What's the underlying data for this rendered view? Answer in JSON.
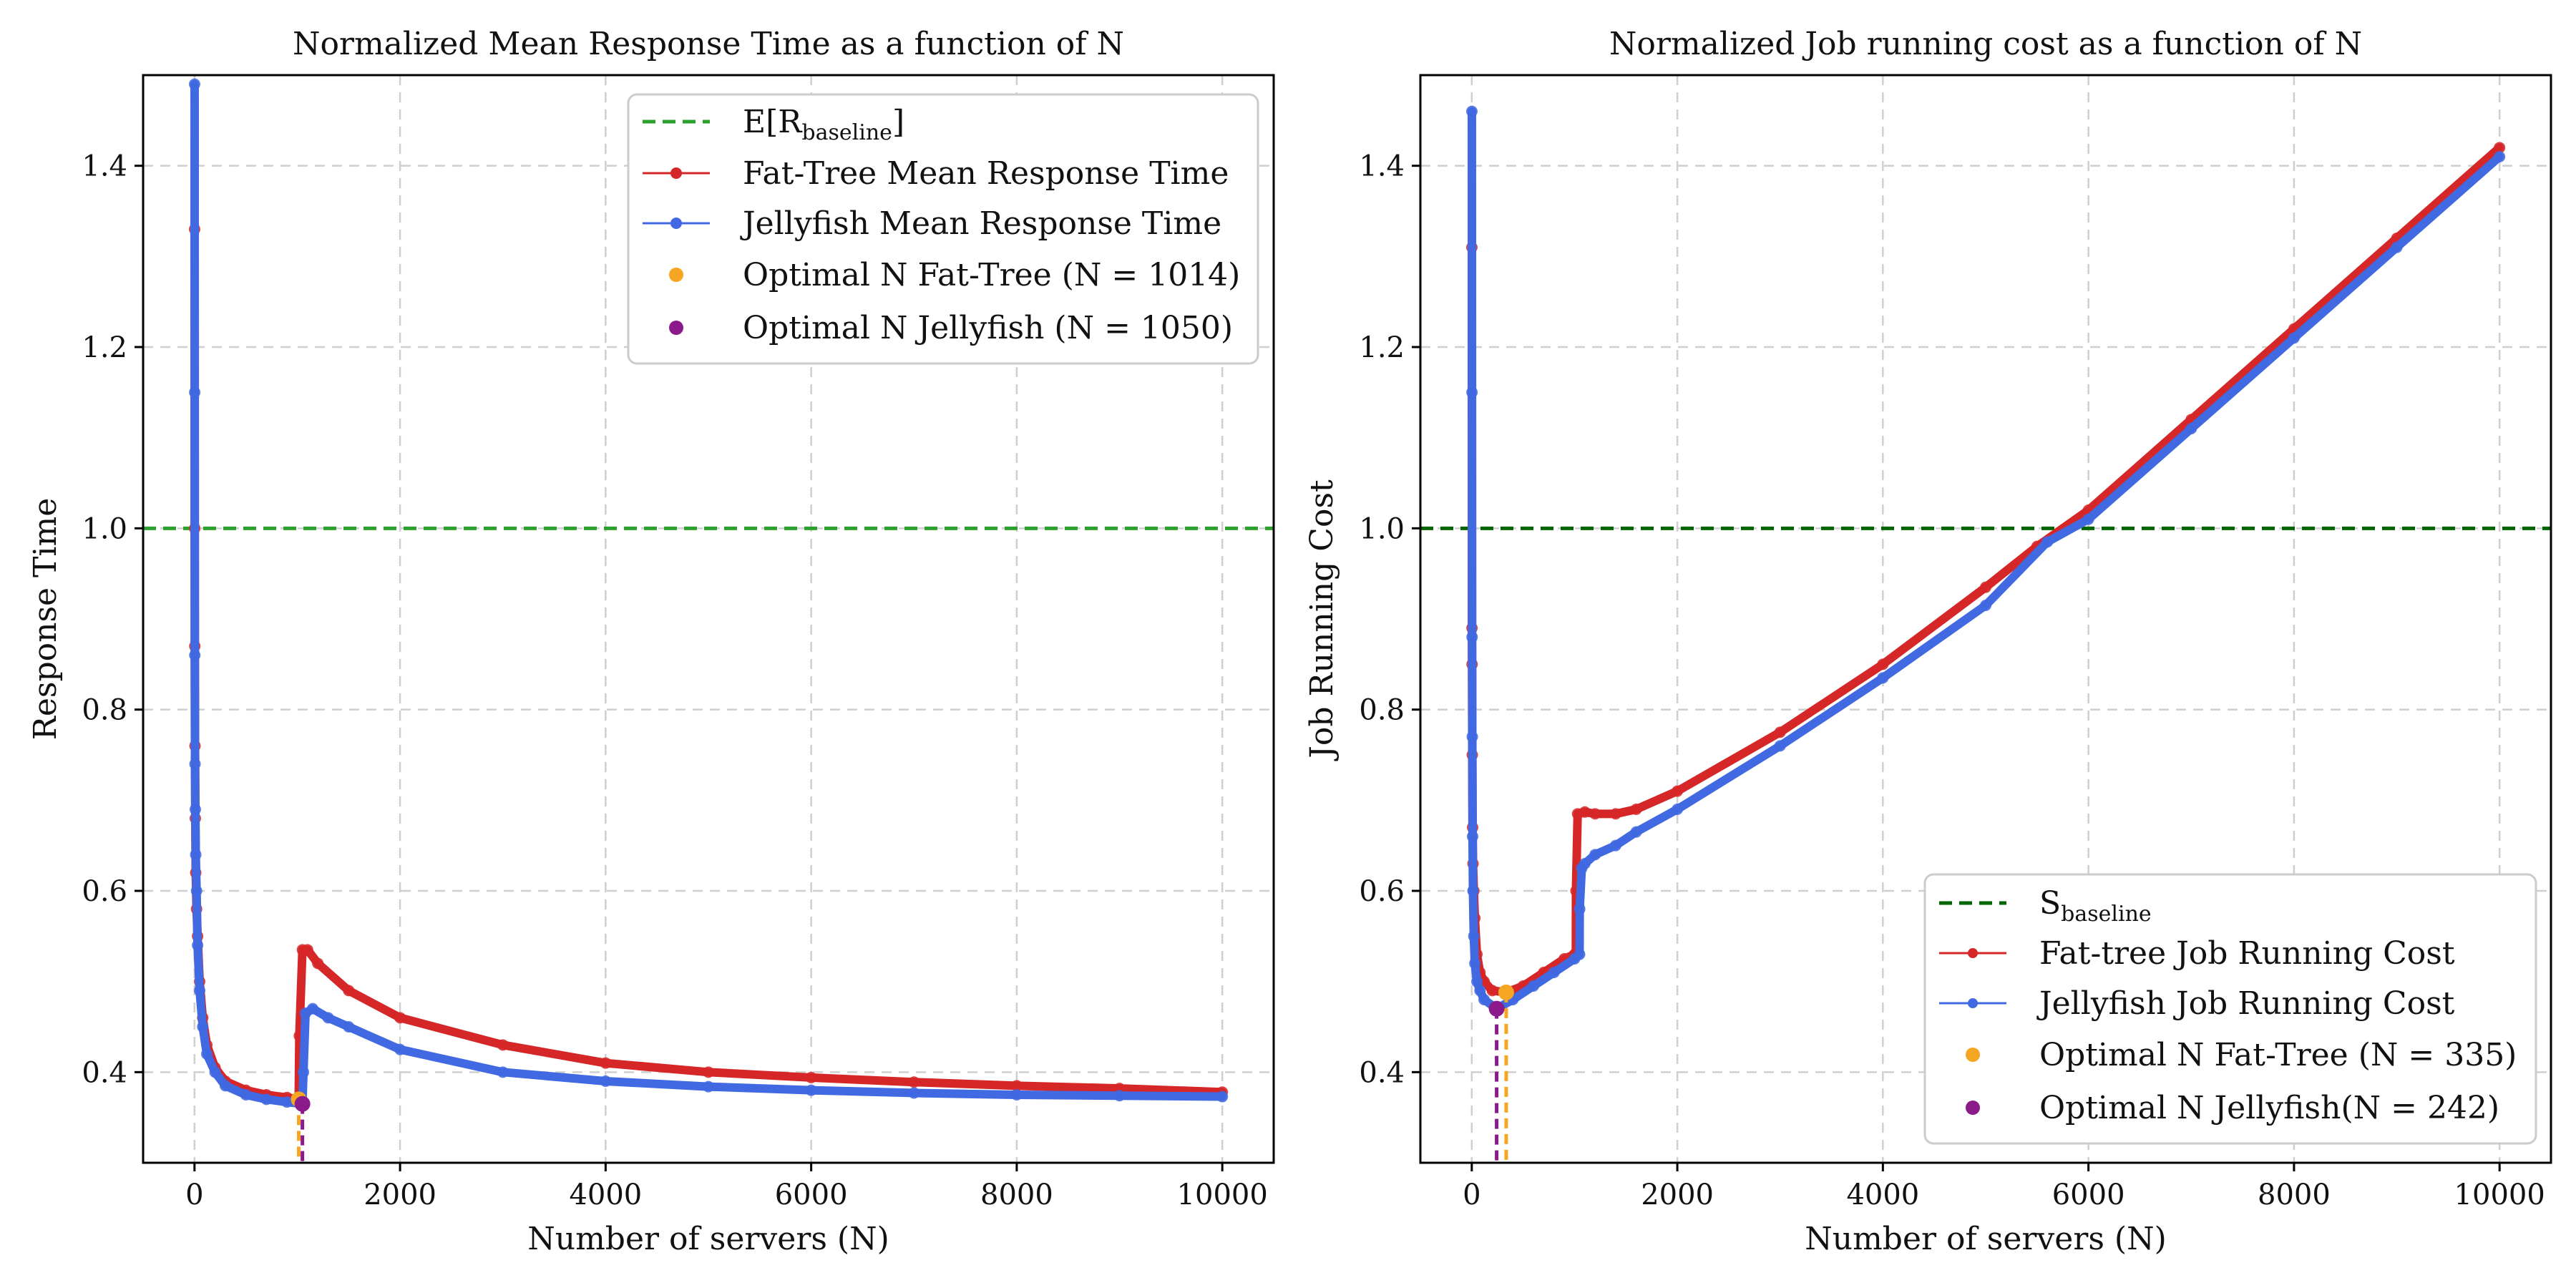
{
  "chart_data": [
    {
      "type": "line",
      "title": "Normalized Mean Response Time as a function of N",
      "xlabel": "Number of servers (N)",
      "ylabel": "Response Time",
      "xlim": [
        -500,
        10500
      ],
      "ylim": [
        0.3,
        1.5
      ],
      "xticks": [
        0,
        2000,
        4000,
        6000,
        8000,
        10000
      ],
      "xtick_labels": [
        "0",
        "2000",
        "4000",
        "6000",
        "8000",
        "10000"
      ],
      "yticks": [
        0.4,
        0.6,
        0.8,
        1.0,
        1.2,
        1.4
      ],
      "ytick_labels": [
        "0.4",
        "0.6",
        "0.8",
        "1.0",
        "1.2",
        "1.4"
      ],
      "grid": true,
      "legend_position": "upper-right",
      "baseline": {
        "label": "E[R_baseline]",
        "y": 1.0,
        "color": "#2ca02c"
      },
      "series": [
        {
          "name": "Fat-Tree Mean Response Time",
          "color": "#d62728",
          "x": [
            1,
            2,
            3,
            5,
            8,
            12,
            20,
            30,
            50,
            80,
            120,
            200,
            300,
            500,
            700,
            900,
            1013,
            1014,
            1020,
            1050,
            1100,
            1200,
            1500,
            2000,
            3000,
            4000,
            5000,
            6000,
            7000,
            8000,
            9000,
            10000
          ],
          "y": [
            1.33,
            1.0,
            0.87,
            0.76,
            0.68,
            0.62,
            0.58,
            0.55,
            0.5,
            0.46,
            0.43,
            0.405,
            0.39,
            0.38,
            0.375,
            0.372,
            0.37,
            0.37,
            0.44,
            0.535,
            0.535,
            0.52,
            0.49,
            0.46,
            0.43,
            0.41,
            0.4,
            0.394,
            0.389,
            0.385,
            0.382,
            0.378
          ]
        },
        {
          "name": "Jellyfish Mean Response Time",
          "color": "#4169e1",
          "x": [
            1,
            2,
            3,
            5,
            8,
            12,
            20,
            30,
            50,
            80,
            120,
            200,
            300,
            500,
            700,
            900,
            1049,
            1050,
            1060,
            1080,
            1150,
            1300,
            1500,
            2000,
            3000,
            4000,
            5000,
            6000,
            7000,
            8000,
            9000,
            10000
          ],
          "y": [
            1.49,
            1.15,
            0.86,
            0.74,
            0.69,
            0.64,
            0.6,
            0.54,
            0.49,
            0.45,
            0.42,
            0.4,
            0.385,
            0.375,
            0.37,
            0.367,
            0.365,
            0.365,
            0.4,
            0.465,
            0.47,
            0.46,
            0.45,
            0.425,
            0.4,
            0.39,
            0.384,
            0.38,
            0.377,
            0.375,
            0.374,
            0.373
          ]
        }
      ],
      "optimal_points": [
        {
          "label": "Optimal N Fat-Tree (N = 1014)",
          "x": 1014,
          "y": 0.37,
          "color": "#f5a623"
        },
        {
          "label": "Optimal N Jellyfish (N = 1050)",
          "x": 1050,
          "y": 0.365,
          "color": "#8b1a8b"
        }
      ]
    },
    {
      "type": "line",
      "title": "Normalized Job running cost as a function of N",
      "xlabel": "Number of servers (N)",
      "ylabel": "Job Running Cost",
      "xlim": [
        -500,
        10500
      ],
      "ylim": [
        0.3,
        1.5
      ],
      "xticks": [
        0,
        2000,
        4000,
        6000,
        8000,
        10000
      ],
      "xtick_labels": [
        "0",
        "2000",
        "4000",
        "6000",
        "8000",
        "10000"
      ],
      "yticks": [
        0.4,
        0.6,
        0.8,
        1.0,
        1.2,
        1.4
      ],
      "ytick_labels": [
        "0.4",
        "0.6",
        "0.8",
        "1.0",
        "1.2",
        "1.4"
      ],
      "grid": true,
      "legend_position": "lower-right",
      "baseline": {
        "label": "S_baseline",
        "y": 1.0,
        "color": "#006400"
      },
      "series": [
        {
          "name": "Fat-tree Job Running Cost",
          "color": "#d62728",
          "x": [
            1,
            2,
            3,
            5,
            8,
            12,
            20,
            30,
            50,
            80,
            120,
            200,
            335,
            500,
            700,
            900,
            1000,
            1013,
            1014,
            1030,
            1100,
            1200,
            1400,
            1600,
            2000,
            3000,
            4000,
            5000,
            5500,
            6000,
            7000,
            8000,
            9000,
            10000
          ],
          "y": [
            1.31,
            0.89,
            0.85,
            0.75,
            0.67,
            0.63,
            0.6,
            0.57,
            0.53,
            0.51,
            0.5,
            0.49,
            0.488,
            0.495,
            0.51,
            0.525,
            0.53,
            0.53,
            0.6,
            0.685,
            0.687,
            0.685,
            0.685,
            0.69,
            0.71,
            0.775,
            0.85,
            0.935,
            0.98,
            1.02,
            1.12,
            1.22,
            1.32,
            1.42
          ]
        },
        {
          "name": "Jellyfish Job Running Cost",
          "color": "#4169e1",
          "x": [
            1,
            2,
            3,
            5,
            8,
            12,
            20,
            30,
            50,
            80,
            120,
            242,
            400,
            600,
            800,
            1000,
            1049,
            1050,
            1070,
            1100,
            1200,
            1400,
            1600,
            2000,
            3000,
            4000,
            5000,
            5600,
            6000,
            7000,
            8000,
            9000,
            10000
          ],
          "y": [
            1.46,
            1.15,
            0.88,
            0.77,
            0.66,
            0.6,
            0.55,
            0.52,
            0.5,
            0.49,
            0.48,
            0.47,
            0.48,
            0.495,
            0.51,
            0.525,
            0.53,
            0.58,
            0.625,
            0.63,
            0.64,
            0.65,
            0.665,
            0.69,
            0.76,
            0.835,
            0.915,
            0.985,
            1.01,
            1.11,
            1.21,
            1.31,
            1.41
          ]
        }
      ],
      "optimal_points": [
        {
          "label": "Optimal N Fat-Tree (N = 335)",
          "x": 335,
          "y": 0.488,
          "color": "#f5a623"
        },
        {
          "label": "Optimal N Jellyfish(N = 242)",
          "x": 242,
          "y": 0.47,
          "color": "#8b1a8b"
        }
      ]
    }
  ]
}
